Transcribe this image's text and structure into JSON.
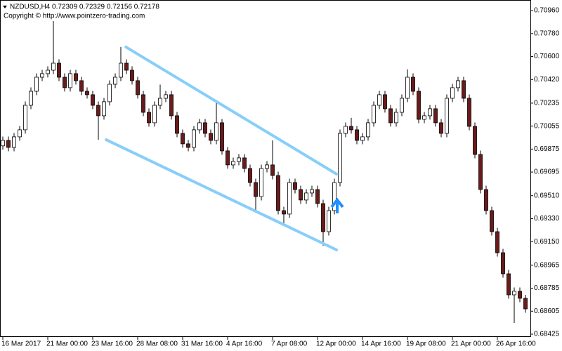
{
  "chart_data": {
    "type": "candlestick",
    "title": "NZDUSD,H4  0.72309 0.72329 0.72156 0.72178",
    "subtitle": "Copyright © http://www.pointzero-trading.com",
    "bull_color": "#ffffff",
    "bear_color": "#6b1a1a",
    "wick_color": "#000000",
    "xlim": [
      -0.5,
      93.875
    ],
    "ylim": [
      0.68403,
      0.71043
    ],
    "xticks": [
      {
        "value": 0,
        "label": "16 Mar 2017"
      },
      {
        "value": 8,
        "label": "21 Mar 00:00"
      },
      {
        "value": 16,
        "label": "23 Mar 16:00"
      },
      {
        "value": 24,
        "label": "28 Mar 08:00"
      },
      {
        "value": 32,
        "label": "31 Mar 16:00"
      },
      {
        "value": 40,
        "label": "4 Apr 16:00"
      },
      {
        "value": 48,
        "label": "7 Apr 08:00"
      },
      {
        "value": 56,
        "label": "12 Apr 00:00"
      },
      {
        "value": 64,
        "label": "14 Apr 16:00"
      },
      {
        "value": 72,
        "label": "19 Apr 08:00"
      },
      {
        "value": 80,
        "label": "21 Apr 00:00"
      },
      {
        "value": 88,
        "label": "26 Apr 16:00"
      }
    ],
    "yticks": [
      {
        "value": 0.7096,
        "label": "0.70960"
      },
      {
        "value": 0.7078,
        "label": "0.70780"
      },
      {
        "value": 0.706,
        "label": "0.70600"
      },
      {
        "value": 0.7042,
        "label": "0.70420"
      },
      {
        "value": 0.70235,
        "label": "0.70235"
      },
      {
        "value": 0.70055,
        "label": "0.70055"
      },
      {
        "value": 0.69875,
        "label": "0.69875"
      },
      {
        "value": 0.69695,
        "label": "0.69695"
      },
      {
        "value": 0.6951,
        "label": "0.69510"
      },
      {
        "value": 0.6933,
        "label": "0.69330"
      },
      {
        "value": 0.6915,
        "label": "0.69150"
      },
      {
        "value": 0.68965,
        "label": "0.68965"
      },
      {
        "value": 0.68785,
        "label": "0.68785"
      },
      {
        "value": 0.68605,
        "label": "0.68605"
      },
      {
        "value": 0.68425,
        "label": "0.68425"
      }
    ],
    "open": [
      0.699,
      0.69943,
      0.69888,
      0.69971,
      0.70026,
      0.70218,
      0.70328,
      0.70438,
      0.70466,
      0.70493,
      0.70548,
      0.70438,
      0.70356,
      0.70466,
      0.70411,
      0.70328,
      0.70301,
      0.70218,
      0.70136,
      0.70246,
      0.70383,
      0.70438,
      0.70548,
      0.70493,
      0.70411,
      0.70301,
      0.70163,
      0.70081,
      0.70218,
      0.70273,
      0.70301,
      0.70136,
      0.69998,
      0.69916,
      0.69888,
      0.70026,
      0.70081,
      0.69998,
      0.69943,
      0.70081,
      0.69861,
      0.69751,
      0.69778,
      0.69806,
      0.69723,
      0.69613,
      0.69503,
      0.69723,
      0.69751,
      0.69668,
      0.69393,
      0.69366,
      0.69613,
      0.69558,
      0.69476,
      0.69531,
      0.69558,
      0.69448,
      0.69228,
      0.69393,
      0.69613,
      0.69998,
      0.70053,
      0.70026,
      0.69943,
      0.69971,
      0.70081,
      0.70218,
      0.70301,
      0.70191,
      0.70081,
      0.70163,
      0.70273,
      0.70438,
      0.70328,
      0.70108,
      0.70136,
      0.70191,
      0.70081,
      0.69998,
      0.70273,
      0.70356,
      0.70411,
      0.70273,
      0.70053,
      0.69833,
      0.69558,
      0.69393,
      0.69228,
      0.69063,
      0.68898,
      0.68733,
      0.68761,
      0.68706
    ],
    "high": [
      0.69973,
      0.69973,
      0.70001,
      0.70056,
      0.70248,
      0.70358,
      0.70468,
      0.70496,
      0.70523,
      0.70878,
      0.70578,
      0.70468,
      0.70496,
      0.70496,
      0.70441,
      0.70358,
      0.70331,
      0.70248,
      0.70276,
      0.70413,
      0.70468,
      0.70675,
      0.70578,
      0.70523,
      0.70441,
      0.70331,
      0.70193,
      0.70248,
      0.7038,
      0.70331,
      0.70331,
      0.70166,
      0.70028,
      0.69946,
      0.70056,
      0.70111,
      0.70111,
      0.70028,
      0.7024,
      0.70111,
      0.69891,
      0.69808,
      0.69836,
      0.69836,
      0.69753,
      0.69643,
      0.69753,
      0.69781,
      0.69943,
      0.69698,
      0.69423,
      0.69643,
      0.69643,
      0.69588,
      0.69561,
      0.69588,
      0.69588,
      0.69478,
      0.69423,
      0.69643,
      0.70028,
      0.70083,
      0.7012,
      0.70056,
      0.70001,
      0.70111,
      0.70248,
      0.70331,
      0.70331,
      0.70221,
      0.70193,
      0.70303,
      0.705,
      0.70468,
      0.70358,
      0.70166,
      0.70221,
      0.70221,
      0.70111,
      0.70303,
      0.70386,
      0.70441,
      0.70441,
      0.70303,
      0.70083,
      0.69863,
      0.69588,
      0.69423,
      0.69258,
      0.69093,
      0.68928,
      0.68791,
      0.68791,
      0.68733
    ],
    "low": [
      0.6987,
      0.69858,
      0.69858,
      0.69941,
      0.69996,
      0.70188,
      0.70298,
      0.70408,
      0.70436,
      0.70463,
      0.70408,
      0.70326,
      0.70326,
      0.70381,
      0.70298,
      0.70271,
      0.70188,
      0.69948,
      0.70106,
      0.70216,
      0.70353,
      0.70408,
      0.70463,
      0.70381,
      0.70271,
      0.70133,
      0.70051,
      0.70051,
      0.70188,
      0.70243,
      0.70106,
      0.69968,
      0.69886,
      0.69858,
      0.69858,
      0.69996,
      0.69968,
      0.69913,
      0.69913,
      0.69831,
      0.69721,
      0.69721,
      0.69748,
      0.69693,
      0.69583,
      0.69393,
      0.69473,
      0.69693,
      0.69638,
      0.69363,
      0.69283,
      0.69336,
      0.69528,
      0.69446,
      0.69446,
      0.69501,
      0.69418,
      0.69118,
      0.69198,
      0.69363,
      0.69583,
      0.69968,
      0.69996,
      0.69913,
      0.69913,
      0.69941,
      0.70051,
      0.70188,
      0.70161,
      0.70051,
      0.70051,
      0.70133,
      0.70243,
      0.70298,
      0.70078,
      0.70078,
      0.70106,
      0.70051,
      0.69968,
      0.69968,
      0.70243,
      0.70326,
      0.70243,
      0.70023,
      0.69803,
      0.69528,
      0.69363,
      0.69198,
      0.69033,
      0.68868,
      0.68703,
      0.68513,
      0.68676,
      0.68593
    ],
    "close": [
      0.69943,
      0.69888,
      0.69971,
      0.70026,
      0.70218,
      0.70328,
      0.70438,
      0.70466,
      0.70493,
      0.70548,
      0.70438,
      0.70356,
      0.70466,
      0.70411,
      0.70328,
      0.70301,
      0.70218,
      0.70136,
      0.70246,
      0.70383,
      0.70438,
      0.70548,
      0.70493,
      0.70411,
      0.70301,
      0.70163,
      0.70081,
      0.70218,
      0.70273,
      0.70301,
      0.70136,
      0.69998,
      0.69916,
      0.69888,
      0.70026,
      0.70081,
      0.69998,
      0.69943,
      0.70081,
      0.69861,
      0.69751,
      0.69778,
      0.69806,
      0.69723,
      0.69613,
      0.69503,
      0.69723,
      0.69751,
      0.69668,
      0.69393,
      0.69366,
      0.69613,
      0.69558,
      0.69476,
      0.69531,
      0.69558,
      0.69448,
      0.69228,
      0.69393,
      0.69613,
      0.69998,
      0.70053,
      0.70026,
      0.69943,
      0.69971,
      0.70081,
      0.70218,
      0.70301,
      0.70191,
      0.70081,
      0.70163,
      0.70273,
      0.70438,
      0.70328,
      0.70108,
      0.70136,
      0.70191,
      0.70081,
      0.69998,
      0.70273,
      0.70356,
      0.70411,
      0.70273,
      0.70053,
      0.69833,
      0.69558,
      0.69393,
      0.69228,
      0.69063,
      0.68898,
      0.68733,
      0.68761,
      0.68706,
      0.68623
    ],
    "trendline_color": "#87cefa",
    "trendlines": [
      {
        "x": [
          21.9,
          59.4
        ],
        "y": [
          0.70675,
          0.69679
        ]
      },
      {
        "x": [
          18.4,
          59.4
        ],
        "y": [
          0.69948,
          0.69085
        ]
      }
    ],
    "arrow_color": "#1e90ff",
    "arrow": {
      "x": 59.5,
      "y": 0.6946
    }
  }
}
